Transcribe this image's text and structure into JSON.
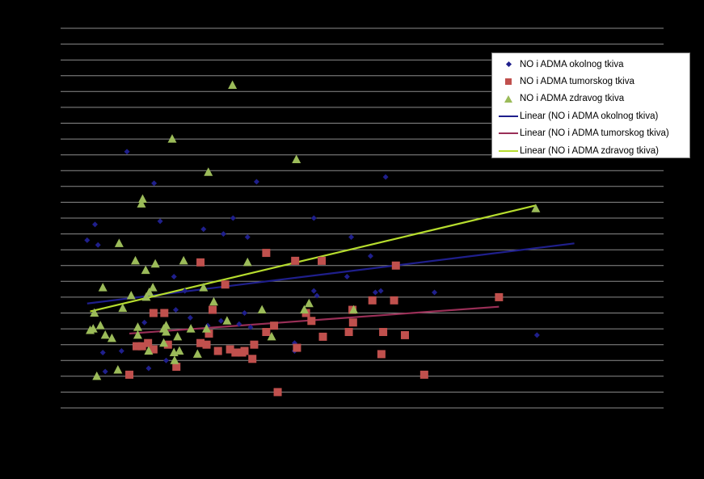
{
  "chart_data": {
    "type": "scatter",
    "grid": true,
    "legend_placement": "top-right",
    "background": "#000000",
    "gridline_color": "#8c8c8c",
    "y_gridline_count": 24,
    "ylim": [
      0,
      24
    ],
    "xlim": [
      0,
      100
    ],
    "series": [
      {
        "name": "NO i ADMA okolnog tkiva",
        "marker": "diamond",
        "color": "#1f1f8c",
        "points": [
          [
            4.4,
            10.6
          ],
          [
            5.7,
            11.6
          ],
          [
            6.2,
            10.3
          ],
          [
            7.0,
            3.5
          ],
          [
            7.4,
            2.3
          ],
          [
            10.1,
            3.6
          ],
          [
            11.0,
            16.2
          ],
          [
            13.9,
            5.4
          ],
          [
            14.6,
            2.5
          ],
          [
            15.5,
            14.2
          ],
          [
            16.5,
            11.8
          ],
          [
            17.5,
            3.0
          ],
          [
            18.8,
            8.3
          ],
          [
            19.1,
            6.2
          ],
          [
            20.6,
            7.4
          ],
          [
            21.5,
            5.7
          ],
          [
            23.7,
            11.3
          ],
          [
            24.4,
            4.6
          ],
          [
            24.4,
            5.2
          ],
          [
            26.6,
            5.5
          ],
          [
            27.0,
            11.0
          ],
          [
            28.6,
            12.0
          ],
          [
            29.6,
            5.3
          ],
          [
            30.5,
            6.0
          ],
          [
            31.0,
            10.8
          ],
          [
            31.5,
            5.1
          ],
          [
            32.5,
            14.3
          ],
          [
            38.8,
            3.6
          ],
          [
            38.8,
            4.1
          ],
          [
            42.0,
            7.4
          ],
          [
            42.0,
            12.0
          ],
          [
            42.5,
            7.1
          ],
          [
            48.2,
            10.8
          ],
          [
            47.5,
            8.3
          ],
          [
            51.4,
            9.6
          ],
          [
            52.2,
            7.3
          ],
          [
            53.1,
            7.4
          ],
          [
            53.9,
            14.6
          ],
          [
            62.0,
            7.3
          ],
          [
            79.0,
            4.6
          ]
        ]
      },
      {
        "name": "NO i ADMA tumorskog tkiva",
        "marker": "square",
        "color": "#c0504d",
        "points": [
          [
            11.4,
            2.1
          ],
          [
            12.6,
            3.9
          ],
          [
            13.5,
            3.9
          ],
          [
            14.5,
            4.1
          ],
          [
            15.4,
            3.7
          ],
          [
            15.4,
            6.0
          ],
          [
            17.2,
            6.0
          ],
          [
            17.8,
            4.0
          ],
          [
            19.2,
            2.6
          ],
          [
            23.2,
            9.2
          ],
          [
            23.2,
            4.1
          ],
          [
            24.2,
            4.0
          ],
          [
            24.6,
            4.7
          ],
          [
            25.2,
            6.2
          ],
          [
            26.1,
            3.6
          ],
          [
            27.3,
            7.8
          ],
          [
            28.1,
            3.7
          ],
          [
            29.0,
            3.5
          ],
          [
            30.1,
            3.5
          ],
          [
            30.5,
            3.6
          ],
          [
            31.8,
            3.1
          ],
          [
            32.1,
            4.0
          ],
          [
            34.1,
            9.8
          ],
          [
            34.1,
            4.8
          ],
          [
            35.4,
            5.2
          ],
          [
            36.0,
            1.0
          ],
          [
            38.9,
            9.3
          ],
          [
            39.2,
            3.8
          ],
          [
            40.7,
            6.0
          ],
          [
            41.6,
            5.5
          ],
          [
            43.3,
            9.3
          ],
          [
            43.5,
            4.5
          ],
          [
            47.8,
            4.8
          ],
          [
            48.4,
            6.2
          ],
          [
            48.5,
            5.4
          ],
          [
            51.7,
            6.8
          ],
          [
            53.2,
            3.4
          ],
          [
            53.5,
            4.8
          ],
          [
            55.3,
            6.8
          ],
          [
            55.6,
            9.0
          ],
          [
            57.1,
            4.6
          ],
          [
            60.3,
            2.1
          ],
          [
            72.7,
            7.0
          ]
        ]
      },
      {
        "name": "NO i ADMA zdravog tkiva",
        "marker": "triangle",
        "color": "#9bbb59",
        "points": [
          [
            4.9,
            4.9
          ],
          [
            5.4,
            5.0
          ],
          [
            5.6,
            6.0
          ],
          [
            6.0,
            2.0
          ],
          [
            6.6,
            5.2
          ],
          [
            7.0,
            7.6
          ],
          [
            7.4,
            4.6
          ],
          [
            8.5,
            4.4
          ],
          [
            9.5,
            2.4
          ],
          [
            9.7,
            10.4
          ],
          [
            10.3,
            6.3
          ],
          [
            11.7,
            7.1
          ],
          [
            12.4,
            9.3
          ],
          [
            12.8,
            5.1
          ],
          [
            12.8,
            4.6
          ],
          [
            13.4,
            12.9
          ],
          [
            13.6,
            13.2
          ],
          [
            14.1,
            8.7
          ],
          [
            14.2,
            7.0
          ],
          [
            14.6,
            3.6
          ],
          [
            14.7,
            7.3
          ],
          [
            15.3,
            7.6
          ],
          [
            15.7,
            9.1
          ],
          [
            17.1,
            5.0
          ],
          [
            17.1,
            4.1
          ],
          [
            17.5,
            5.2
          ],
          [
            17.5,
            4.8
          ],
          [
            18.5,
            17.0
          ],
          [
            18.8,
            3.5
          ],
          [
            18.9,
            3.0
          ],
          [
            19.4,
            4.5
          ],
          [
            19.7,
            3.6
          ],
          [
            20.4,
            9.3
          ],
          [
            21.6,
            5.0
          ],
          [
            22.7,
            3.4
          ],
          [
            23.7,
            7.6
          ],
          [
            24.2,
            5.0
          ],
          [
            24.5,
            14.9
          ],
          [
            25.4,
            6.7
          ],
          [
            27.6,
            5.5
          ],
          [
            28.5,
            20.4
          ],
          [
            31.0,
            9.2
          ],
          [
            33.4,
            6.2
          ],
          [
            35.0,
            4.5
          ],
          [
            39.1,
            15.7
          ],
          [
            40.4,
            6.2
          ],
          [
            41.2,
            6.6
          ],
          [
            48.6,
            6.2
          ],
          [
            78.8,
            12.6
          ]
        ]
      },
      {
        "name": "Linear (NO i ADMA okolnog tkiva)",
        "type": "line",
        "color": "#1f1f8c",
        "x": [
          4.4,
          85.2
        ],
        "y": [
          6.6,
          10.4
        ]
      },
      {
        "name": "Linear (NO i ADMA tumorskog tkiva)",
        "type": "line",
        "color": "#9a2f57",
        "x": [
          11.4,
          72.7
        ],
        "y": [
          4.7,
          6.4
        ]
      },
      {
        "name": "Linear (NO i ADMA zdravog tkiva)",
        "type": "line",
        "color": "#b6dc2e",
        "x": [
          4.9,
          78.8
        ],
        "y": [
          6.1,
          12.8
        ]
      }
    ]
  }
}
